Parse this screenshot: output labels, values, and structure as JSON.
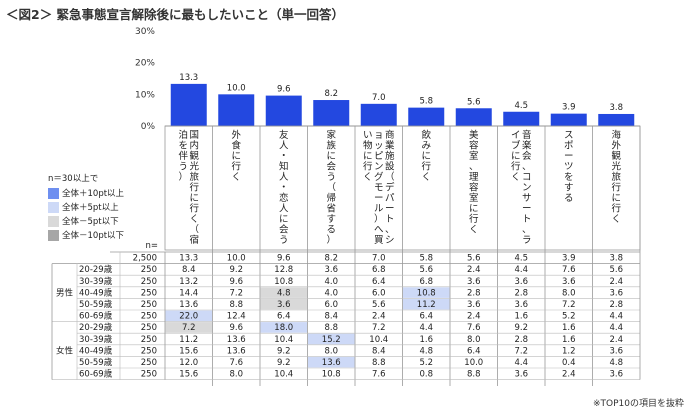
{
  "title": "＜図2＞ 緊急事態宣言解除後に最もしたいこと（単一回答）",
  "legend": {
    "title": "n＝30以上で",
    "items": [
      {
        "label": "全体＋10pt以上",
        "color": "#6e8ff0"
      },
      {
        "label": "全体＋5pt以上",
        "color": "#cdd9f7"
      },
      {
        "label": "全体－5pt以下",
        "color": "#d9d9d9"
      },
      {
        "label": "全体－10pt以下",
        "color": "#a6a6a6"
      }
    ]
  },
  "footnote": "※TOP10の項目を抜粋",
  "n_label": "n=",
  "chart_data": {
    "type": "bar",
    "ylim": [
      0,
      30
    ],
    "yticks": [
      "0%",
      "10%",
      "20%",
      "30%"
    ],
    "bar_color": "#2348e0",
    "categories": [
      "国内観光旅行に行く（宿泊を伴う）",
      "外食に行く",
      "友人・知人・恋人に会う",
      "家族に会う（帰省する）",
      "商業施設（デパート、ショッピングモール）へ買い物に行く",
      "飲みに行く",
      "美容室、理容室に行く",
      "音楽会、コンサート、ライブに行く",
      "スポーツをする",
      "海外観光旅行に行く"
    ],
    "values": [
      13.3,
      10.0,
      9.6,
      8.2,
      7.0,
      5.8,
      5.6,
      4.5,
      3.9,
      3.8
    ]
  },
  "table": {
    "total": {
      "label": "",
      "n": "2,500",
      "values": [
        "13.3",
        "10.0",
        "9.6",
        "8.2",
        "7.0",
        "5.8",
        "5.6",
        "4.5",
        "3.9",
        "3.8"
      ]
    },
    "groups": [
      {
        "name": "男性",
        "rows": [
          {
            "age": "20-29歳",
            "n": "250",
            "values": [
              "8.4",
              "9.2",
              "12.8",
              "3.6",
              "6.8",
              "5.6",
              "2.4",
              "4.4",
              "7.6",
              "5.6"
            ],
            "hl": [
              null,
              null,
              null,
              null,
              null,
              null,
              null,
              null,
              null,
              null
            ]
          },
          {
            "age": "30-39歳",
            "n": "250",
            "values": [
              "13.2",
              "9.6",
              "10.8",
              "4.0",
              "6.4",
              "6.8",
              "3.6",
              "3.6",
              "3.6",
              "2.4"
            ],
            "hl": [
              null,
              null,
              null,
              null,
              null,
              null,
              null,
              null,
              null,
              null
            ]
          },
          {
            "age": "40-49歳",
            "n": "250",
            "values": [
              "14.4",
              "7.2",
              "4.8",
              "4.0",
              "6.0",
              "10.8",
              "2.8",
              "2.8",
              "8.0",
              "3.6"
            ],
            "hl": [
              null,
              null,
              "d5",
              null,
              null,
              "u5",
              null,
              null,
              null,
              null
            ]
          },
          {
            "age": "50-59歳",
            "n": "250",
            "values": [
              "13.6",
              "8.8",
              "3.6",
              "6.0",
              "5.6",
              "11.2",
              "3.6",
              "3.6",
              "7.2",
              "2.8"
            ],
            "hl": [
              null,
              null,
              "d5",
              null,
              null,
              "u5",
              null,
              null,
              null,
              null
            ]
          },
          {
            "age": "60-69歳",
            "n": "250",
            "values": [
              "22.0",
              "12.4",
              "6.4",
              "8.4",
              "2.4",
              "6.4",
              "2.4",
              "1.6",
              "5.2",
              "4.4"
            ],
            "hl": [
              "u5",
              null,
              null,
              null,
              null,
              null,
              null,
              null,
              null,
              null
            ]
          }
        ]
      },
      {
        "name": "女性",
        "rows": [
          {
            "age": "20-29歳",
            "n": "250",
            "values": [
              "7.2",
              "9.6",
              "18.0",
              "8.8",
              "7.2",
              "4.4",
              "7.6",
              "9.2",
              "1.6",
              "4.4"
            ],
            "hl": [
              "d5",
              null,
              "u5",
              null,
              null,
              null,
              null,
              null,
              null,
              null
            ]
          },
          {
            "age": "30-39歳",
            "n": "250",
            "values": [
              "11.2",
              "13.6",
              "10.4",
              "15.2",
              "10.4",
              "1.6",
              "8.0",
              "2.8",
              "1.6",
              "2.4"
            ],
            "hl": [
              null,
              null,
              null,
              "u5",
              null,
              null,
              null,
              null,
              null,
              null
            ]
          },
          {
            "age": "40-49歳",
            "n": "250",
            "values": [
              "15.6",
              "13.6",
              "9.2",
              "8.0",
              "8.4",
              "4.8",
              "6.4",
              "7.2",
              "1.2",
              "3.6"
            ],
            "hl": [
              null,
              null,
              null,
              null,
              null,
              null,
              null,
              null,
              null,
              null
            ]
          },
          {
            "age": "50-59歳",
            "n": "250",
            "values": [
              "12.0",
              "7.6",
              "9.2",
              "13.6",
              "8.8",
              "5.2",
              "10.0",
              "4.4",
              "0.4",
              "4.8"
            ],
            "hl": [
              null,
              null,
              null,
              "u5",
              null,
              null,
              null,
              null,
              null,
              null
            ]
          },
          {
            "age": "60-69歳",
            "n": "250",
            "values": [
              "15.6",
              "8.0",
              "10.4",
              "10.8",
              "7.6",
              "0.8",
              "8.8",
              "3.6",
              "2.4",
              "3.6"
            ],
            "hl": [
              null,
              null,
              null,
              null,
              null,
              null,
              null,
              null,
              null,
              null
            ]
          }
        ]
      }
    ]
  }
}
